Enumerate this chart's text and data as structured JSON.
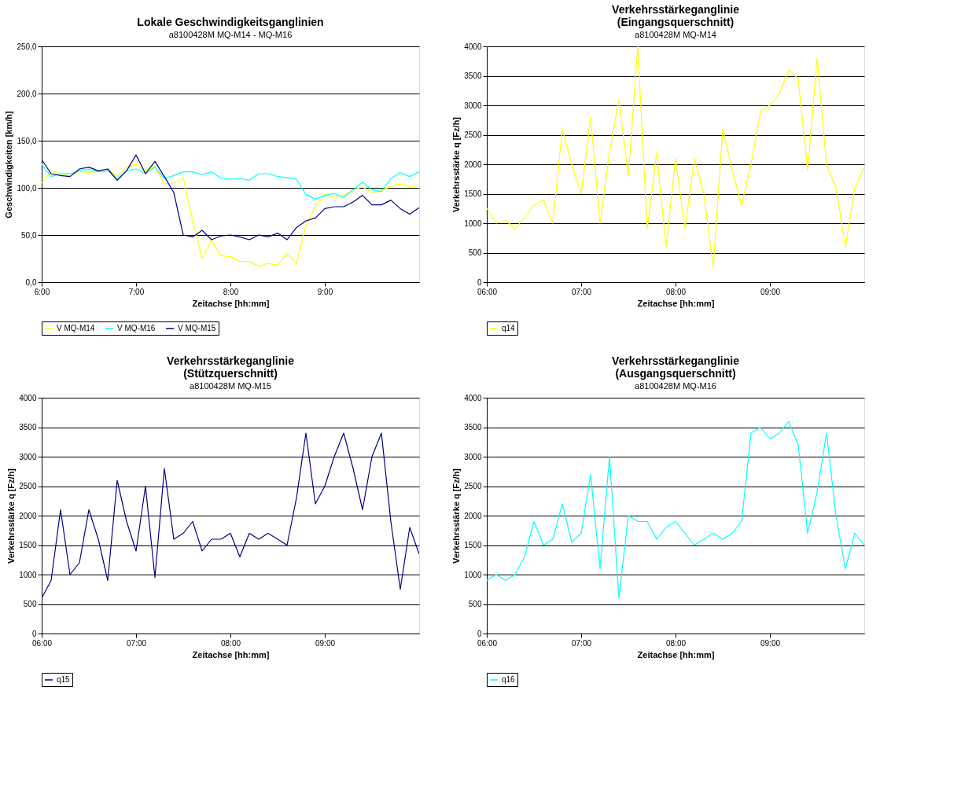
{
  "chart_data": [
    {
      "type": "line",
      "title": "Lokale Geschwindigkeitsganglinien",
      "subtitle": "a8100428M MQ-M14 - MQ-M16",
      "xlabel": "Zeitachse [hh:mm]",
      "ylabel": "Geschwindigkeiten [km/h]",
      "x": [
        6.0,
        6.1,
        6.2,
        6.3,
        6.4,
        6.5,
        6.6,
        6.7,
        6.8,
        6.9,
        7.0,
        7.1,
        7.2,
        7.3,
        7.4,
        7.5,
        7.6,
        7.7,
        7.8,
        7.9,
        8.0,
        8.1,
        8.2,
        8.3,
        8.4,
        8.5,
        8.6,
        8.7,
        8.8,
        8.9,
        9.0,
        9.1,
        9.2,
        9.3,
        9.4,
        9.5,
        9.6,
        9.7,
        9.8,
        9.9,
        10.0
      ],
      "xlim": [
        6,
        10
      ],
      "xticks": [
        {
          "value": 6,
          "label": "6:00"
        },
        {
          "value": 7,
          "label": "7:00"
        },
        {
          "value": 8,
          "label": "8:00"
        },
        {
          "value": 9,
          "label": "9:00"
        }
      ],
      "ylim": [
        0,
        250
      ],
      "yticks": [
        {
          "value": 0,
          "label": "0,0"
        },
        {
          "value": 50,
          "label": "50,0"
        },
        {
          "value": 100,
          "label": "100,0"
        },
        {
          "value": 150,
          "label": "150,0"
        },
        {
          "value": 200,
          "label": "200,0"
        },
        {
          "value": 250,
          "label": "250,0"
        }
      ],
      "grid": "y",
      "legend": "bottom",
      "series": [
        {
          "name": "V MQ-M14",
          "color": "#ffff00",
          "values": [
            105,
            118,
            115,
            112,
            118,
            116,
            118,
            120,
            112,
            122,
            125,
            118,
            123,
            104,
            105,
            110,
            65,
            25,
            45,
            28,
            27,
            22,
            22,
            17,
            20,
            18,
            30,
            20,
            60,
            80,
            93,
            90,
            92,
            98,
            101,
            95,
            97,
            102,
            104,
            101,
            103
          ]
        },
        {
          "name": "V MQ-M16",
          "color": "#00ffff",
          "values": [
            125,
            112,
            115,
            115,
            118,
            120,
            117,
            118,
            110,
            118,
            120,
            115,
            122,
            110,
            113,
            117,
            117,
            114,
            117,
            110,
            109,
            110,
            108,
            115,
            115,
            112,
            111,
            109,
            93,
            88,
            92,
            94,
            90,
            98,
            106,
            98,
            96,
            110,
            116,
            112,
            117
          ]
        },
        {
          "name": "V MQ-M15",
          "color": "#000080",
          "values": [
            130,
            115,
            113,
            112,
            120,
            122,
            118,
            120,
            108,
            118,
            135,
            115,
            128,
            112,
            95,
            50,
            48,
            55,
            45,
            49,
            50,
            48,
            45,
            50,
            48,
            52,
            45,
            58,
            65,
            68,
            78,
            80,
            80,
            85,
            92,
            82,
            82,
            87,
            78,
            72,
            79
          ]
        }
      ]
    },
    {
      "type": "line",
      "title": "Verkehrsstärkeganglinie\n(Eingangsquerschnitt)",
      "subtitle": "a8100428M MQ-M14",
      "xlabel": "Zeitachse [hh:mm]",
      "ylabel": "Verkehrsstärke q [Fz/h]",
      "x": [
        6.0,
        6.1,
        6.2,
        6.3,
        6.4,
        6.5,
        6.6,
        6.7,
        6.8,
        6.9,
        7.0,
        7.1,
        7.2,
        7.3,
        7.4,
        7.5,
        7.6,
        7.7,
        7.8,
        7.9,
        8.0,
        8.1,
        8.2,
        8.3,
        8.4,
        8.5,
        8.6,
        8.7,
        8.8,
        8.9,
        9.0,
        9.1,
        9.2,
        9.3,
        9.4,
        9.5,
        9.6,
        9.7,
        9.8,
        9.9,
        10.0
      ],
      "xlim": [
        6,
        10
      ],
      "xticks": [
        {
          "value": 6,
          "label": "06:00"
        },
        {
          "value": 7,
          "label": "07:00"
        },
        {
          "value": 8,
          "label": "08:00"
        },
        {
          "value": 9,
          "label": "09:00"
        }
      ],
      "ylim": [
        0,
        4000
      ],
      "yticks": [
        0,
        500,
        1000,
        1500,
        2000,
        2500,
        3000,
        3500,
        4000
      ],
      "grid": "y",
      "legend": "bottom",
      "series": [
        {
          "name": "q14",
          "color": "#ffff00",
          "values": [
            1250,
            1000,
            1050,
            900,
            1100,
            1300,
            1400,
            1000,
            2600,
            2000,
            1500,
            2800,
            1000,
            2200,
            3100,
            1800,
            4000,
            900,
            2200,
            600,
            2100,
            900,
            2100,
            1500,
            250,
            2600,
            1900,
            1300,
            2000,
            2900,
            3000,
            3200,
            3600,
            3450,
            1900,
            3800,
            2000,
            1600,
            600,
            1600,
            1950
          ]
        }
      ]
    },
    {
      "type": "line",
      "title": "Verkehrsstärkeganglinie\n(Stützquerschnitt)",
      "subtitle": "a8100428M MQ-M15",
      "xlabel": "Zeitachse [hh:mm]",
      "ylabel": "Verkehrsstärke q [Fz/h]",
      "x": [
        6.0,
        6.1,
        6.2,
        6.3,
        6.4,
        6.5,
        6.6,
        6.7,
        6.8,
        6.9,
        7.0,
        7.1,
        7.2,
        7.3,
        7.4,
        7.5,
        7.6,
        7.7,
        7.8,
        7.9,
        8.0,
        8.1,
        8.2,
        8.3,
        8.4,
        8.5,
        8.6,
        8.7,
        8.8,
        8.9,
        9.0,
        9.1,
        9.2,
        9.3,
        9.4,
        9.5,
        9.6,
        9.7,
        9.8,
        9.9,
        10.0
      ],
      "xlim": [
        6,
        10
      ],
      "xticks": [
        {
          "value": 6,
          "label": "06:00"
        },
        {
          "value": 7,
          "label": "07:00"
        },
        {
          "value": 8,
          "label": "08:00"
        },
        {
          "value": 9,
          "label": "09:00"
        }
      ],
      "ylim": [
        0,
        4000
      ],
      "yticks": [
        0,
        500,
        1000,
        1500,
        2000,
        2500,
        3000,
        3500,
        4000
      ],
      "grid": "y",
      "legend": "bottom",
      "series": [
        {
          "name": "q15",
          "color": "#000080",
          "values": [
            600,
            900,
            2100,
            1000,
            1200,
            2100,
            1600,
            900,
            2600,
            1900,
            1400,
            2500,
            950,
            2800,
            1600,
            1700,
            1900,
            1400,
            1600,
            1600,
            1700,
            1300,
            1700,
            1600,
            1700,
            1600,
            1500,
            2300,
            3400,
            2200,
            2500,
            3000,
            3400,
            2800,
            2100,
            3000,
            3400,
            1900,
            750,
            1800,
            1350
          ]
        }
      ]
    },
    {
      "type": "line",
      "title": "Verkehrsstärkeganglinie\n(Ausgangsquerschnitt)",
      "subtitle": "a8100428M MQ-M16",
      "xlabel": "Zeitachse [hh:mm]",
      "ylabel": "Verkehrsstärke q [Fz/h]",
      "x": [
        6.0,
        6.1,
        6.2,
        6.3,
        6.4,
        6.5,
        6.6,
        6.7,
        6.8,
        6.9,
        7.0,
        7.1,
        7.2,
        7.3,
        7.4,
        7.5,
        7.6,
        7.7,
        7.8,
        7.9,
        8.0,
        8.1,
        8.2,
        8.3,
        8.4,
        8.5,
        8.6,
        8.7,
        8.8,
        8.9,
        9.0,
        9.1,
        9.2,
        9.3,
        9.4,
        9.5,
        9.6,
        9.7,
        9.8,
        9.9,
        10.0
      ],
      "xlim": [
        6,
        10
      ],
      "xticks": [
        {
          "value": 6,
          "label": "06:00"
        },
        {
          "value": 7,
          "label": "07:00"
        },
        {
          "value": 8,
          "label": "08:00"
        },
        {
          "value": 9,
          "label": "09:00"
        }
      ],
      "ylim": [
        0,
        4000
      ],
      "yticks": [
        0,
        500,
        1000,
        1500,
        2000,
        2500,
        3000,
        3500,
        4000
      ],
      "grid": "y",
      "legend": "bottom",
      "series": [
        {
          "name": "q16",
          "color": "#00ffff",
          "values": [
            900,
            1000,
            900,
            1000,
            1300,
            1900,
            1500,
            1600,
            2200,
            1550,
            1700,
            2700,
            1100,
            3000,
            600,
            2000,
            1900,
            1900,
            1600,
            1800,
            1900,
            1700,
            1500,
            1600,
            1700,
            1600,
            1700,
            1900,
            3400,
            3500,
            3300,
            3400,
            3600,
            3200,
            1700,
            2400,
            3400,
            2000,
            1100,
            1700,
            1500
          ]
        }
      ]
    }
  ]
}
